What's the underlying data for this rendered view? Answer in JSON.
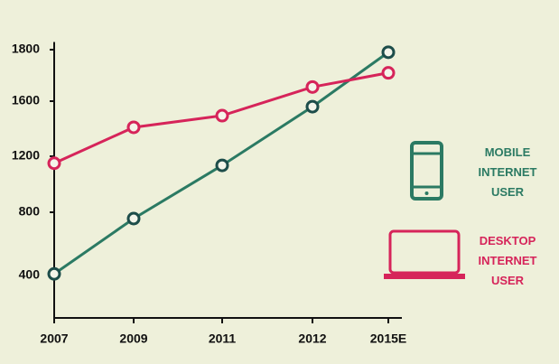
{
  "chart_data": {
    "type": "line",
    "categories": [
      "2007",
      "2009",
      "2011",
      "2012",
      "2015E"
    ],
    "series": [
      {
        "name": "MOBILE INTERNET USER",
        "color": "#2b7a63",
        "values": [
          410,
          760,
          1135,
          1560,
          1790
        ]
      },
      {
        "name": "DESKTOP INTERNET USER",
        "color": "#d6245a",
        "values": [
          1150,
          1410,
          1495,
          1655,
          1710
        ]
      }
    ],
    "ylim": [
      130,
      1830
    ],
    "yticks": [
      400,
      800,
      1200,
      1600,
      1800
    ]
  }
}
